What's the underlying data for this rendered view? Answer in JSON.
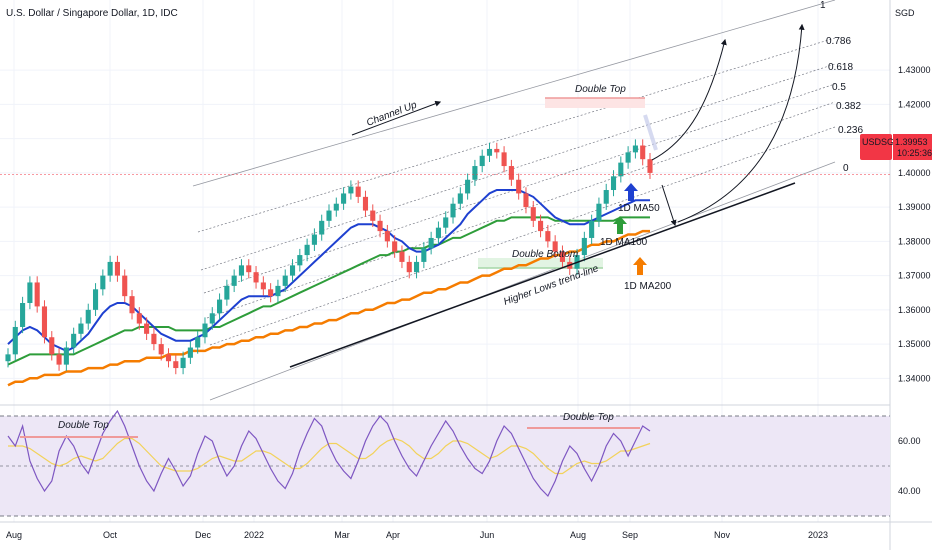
{
  "header": {
    "title": "U.S. Dollar / Singapore Dollar, 1D, IDC"
  },
  "price_tag": {
    "symbol": "USDSGD",
    "price": "1.39953",
    "countdown": "10:25:36",
    "color": "#f23645"
  },
  "colors": {
    "up": "#26a69a",
    "down": "#ef5350",
    "ma50": "#1e40d0",
    "ma100": "#2e9d3a",
    "ma200": "#f57c00",
    "rsi": "#7e57c2",
    "rsi_ma": "#f2d25a",
    "rsi_band": "#ede7f6",
    "double_top": "#ef9a9a",
    "double_bottom": "#a5d6a7"
  },
  "annotations": {
    "channel_up": "Channel Up",
    "double_top": "Double Top",
    "double_bottom": "Double Bottom",
    "higher_lows": "Higher Lows trend-line",
    "ma50_label": "1D MA50",
    "ma100_label": "1D MA100",
    "ma200_label": "1D MA200",
    "rsi_double_top_left": "Double Top",
    "rsi_double_top_right": "Double Top"
  },
  "chart_data": [
    {
      "type": "candlestick",
      "title": "U.S. Dollar / Singapore Dollar, 1D, IDC",
      "currency_label": "SGD",
      "y_ticks": [
        "1.43000",
        "1.42000",
        "1.41000",
        "1.40000",
        "1.39000",
        "1.38000",
        "1.37000",
        "1.36000",
        "1.35000",
        "1.34000"
      ],
      "ylim": [
        1.3325,
        1.4505
      ],
      "x_ticks": [
        "Aug",
        "Oct",
        "Dec",
        "2022",
        "Mar",
        "Apr",
        "Jun",
        "Aug",
        "Sep",
        "Nov",
        "2023"
      ],
      "grid": true,
      "fib_levels": [
        "1",
        "0.786",
        "0.618",
        "0.5",
        "0.382",
        "0.236",
        "0"
      ],
      "series": [
        {
          "name": "USDSGD",
          "kind": "close",
          "values": [
            1.347,
            1.355,
            1.362,
            1.368,
            1.361,
            1.352,
            1.347,
            1.344,
            1.349,
            1.353,
            1.356,
            1.36,
            1.366,
            1.37,
            1.374,
            1.37,
            1.364,
            1.359,
            1.356,
            1.353,
            1.35,
            1.347,
            1.345,
            1.343,
            1.346,
            1.349,
            1.352,
            1.356,
            1.359,
            1.363,
            1.367,
            1.37,
            1.373,
            1.371,
            1.368,
            1.366,
            1.364,
            1.367,
            1.37,
            1.373,
            1.376,
            1.379,
            1.382,
            1.386,
            1.389,
            1.391,
            1.394,
            1.396,
            1.393,
            1.389,
            1.386,
            1.383,
            1.38,
            1.377,
            1.374,
            1.371,
            1.374,
            1.378,
            1.381,
            1.384,
            1.387,
            1.391,
            1.394,
            1.398,
            1.402,
            1.405,
            1.407,
            1.406,
            1.402,
            1.398,
            1.394,
            1.39,
            1.386,
            1.383,
            1.38,
            1.377,
            1.374,
            1.372,
            1.376,
            1.381,
            1.386,
            1.391,
            1.395,
            1.399,
            1.403,
            1.406,
            1.408,
            1.404,
            1.4
          ]
        },
        {
          "name": "1D MA50",
          "kind": "ma",
          "values": [
            1.35,
            1.352,
            1.354,
            1.355,
            1.354,
            1.352,
            1.35,
            1.349,
            1.348,
            1.349,
            1.351,
            1.353,
            1.356,
            1.359,
            1.361,
            1.362,
            1.362,
            1.361,
            1.359,
            1.357,
            1.355,
            1.353,
            1.352,
            1.351,
            1.351,
            1.351,
            1.352,
            1.353,
            1.355,
            1.357,
            1.359,
            1.361,
            1.363,
            1.364,
            1.364,
            1.364,
            1.364,
            1.365,
            1.366,
            1.368,
            1.37,
            1.372,
            1.374,
            1.376,
            1.378,
            1.38,
            1.382,
            1.384,
            1.385,
            1.385,
            1.385,
            1.384,
            1.383,
            1.381,
            1.38,
            1.378,
            1.377,
            1.377,
            1.378,
            1.379,
            1.381,
            1.383,
            1.385,
            1.388,
            1.39,
            1.392,
            1.394,
            1.395,
            1.395,
            1.395,
            1.395,
            1.394,
            1.393,
            1.391,
            1.389,
            1.387,
            1.386,
            1.385,
            1.385,
            1.385,
            1.386,
            1.387,
            1.388,
            1.389,
            1.39,
            1.391,
            1.392,
            1.392,
            1.392
          ]
        },
        {
          "name": "1D MA100",
          "kind": "ma",
          "values": [
            1.344,
            1.345,
            1.346,
            1.347,
            1.347,
            1.347,
            1.347,
            1.347,
            1.347,
            1.347,
            1.348,
            1.349,
            1.35,
            1.351,
            1.352,
            1.353,
            1.354,
            1.354,
            1.355,
            1.355,
            1.355,
            1.355,
            1.355,
            1.354,
            1.354,
            1.354,
            1.354,
            1.354,
            1.355,
            1.355,
            1.356,
            1.357,
            1.358,
            1.359,
            1.36,
            1.361,
            1.361,
            1.362,
            1.363,
            1.364,
            1.365,
            1.366,
            1.367,
            1.368,
            1.369,
            1.37,
            1.371,
            1.372,
            1.373,
            1.374,
            1.375,
            1.376,
            1.376,
            1.377,
            1.377,
            1.378,
            1.378,
            1.378,
            1.379,
            1.379,
            1.38,
            1.381,
            1.381,
            1.382,
            1.383,
            1.384,
            1.385,
            1.386,
            1.386,
            1.387,
            1.387,
            1.387,
            1.387,
            1.387,
            1.387,
            1.386,
            1.386,
            1.386,
            1.386,
            1.386,
            1.386,
            1.386,
            1.386,
            1.386,
            1.387,
            1.387,
            1.387,
            1.387,
            1.387
          ]
        },
        {
          "name": "1D MA200",
          "kind": "ma",
          "values": [
            1.338,
            1.339,
            1.339,
            1.34,
            1.34,
            1.341,
            1.341,
            1.341,
            1.342,
            1.342,
            1.342,
            1.343,
            1.343,
            1.343,
            1.344,
            1.344,
            1.345,
            1.345,
            1.345,
            1.346,
            1.346,
            1.346,
            1.347,
            1.347,
            1.347,
            1.348,
            1.348,
            1.348,
            1.349,
            1.349,
            1.35,
            1.35,
            1.351,
            1.351,
            1.352,
            1.352,
            1.353,
            1.353,
            1.354,
            1.354,
            1.355,
            1.355,
            1.356,
            1.356,
            1.357,
            1.357,
            1.358,
            1.359,
            1.359,
            1.36,
            1.36,
            1.361,
            1.362,
            1.362,
            1.363,
            1.363,
            1.364,
            1.365,
            1.365,
            1.366,
            1.366,
            1.367,
            1.368,
            1.368,
            1.369,
            1.37,
            1.37,
            1.371,
            1.372,
            1.372,
            1.373,
            1.373,
            1.374,
            1.375,
            1.375,
            1.376,
            1.376,
            1.377,
            1.377,
            1.378,
            1.379,
            1.379,
            1.38,
            1.38,
            1.381,
            1.382,
            1.382,
            1.383,
            1.383
          ]
        }
      ]
    },
    {
      "type": "line",
      "title": "",
      "y_ticks": [
        "60.00",
        "40.00"
      ],
      "ylim": [
        28,
        74
      ],
      "band": [
        30,
        70
      ],
      "grid": true,
      "series": [
        {
          "name": "RSI",
          "values": [
            62,
            58,
            66,
            52,
            45,
            40,
            44,
            56,
            62,
            58,
            51,
            47,
            55,
            63,
            68,
            72,
            66,
            58,
            50,
            44,
            40,
            47,
            53,
            48,
            42,
            46,
            55,
            62,
            60,
            52,
            46,
            50,
            58,
            64,
            61,
            55,
            49,
            44,
            41,
            47,
            56,
            63,
            69,
            66,
            58,
            52,
            48,
            45,
            52,
            60,
            66,
            70,
            67,
            60,
            54,
            49,
            46,
            52,
            58,
            63,
            68,
            64,
            58,
            53,
            49,
            47,
            52,
            60,
            66,
            63,
            57,
            51,
            45,
            41,
            38,
            44,
            52,
            58,
            55,
            49,
            44,
            50,
            58,
            63,
            60,
            54,
            60,
            66,
            64
          ]
        },
        {
          "name": "RSI MA",
          "values": [
            58,
            58,
            58,
            57,
            55,
            53,
            51,
            50,
            51,
            53,
            54,
            53,
            52,
            53,
            56,
            59,
            61,
            61,
            59,
            56,
            53,
            50,
            49,
            48,
            48,
            48,
            49,
            51,
            53,
            54,
            53,
            52,
            52,
            54,
            56,
            56,
            55,
            53,
            51,
            49,
            49,
            51,
            54,
            57,
            59,
            59,
            57,
            55,
            53,
            53,
            55,
            58,
            60,
            61,
            60,
            58,
            55,
            53,
            53,
            55,
            58,
            60,
            60,
            59,
            57,
            55,
            53,
            54,
            56,
            58,
            58,
            57,
            55,
            52,
            49,
            47,
            47,
            49,
            51,
            52,
            51,
            51,
            52,
            54,
            56,
            56,
            57,
            58,
            59
          ]
        }
      ]
    }
  ]
}
